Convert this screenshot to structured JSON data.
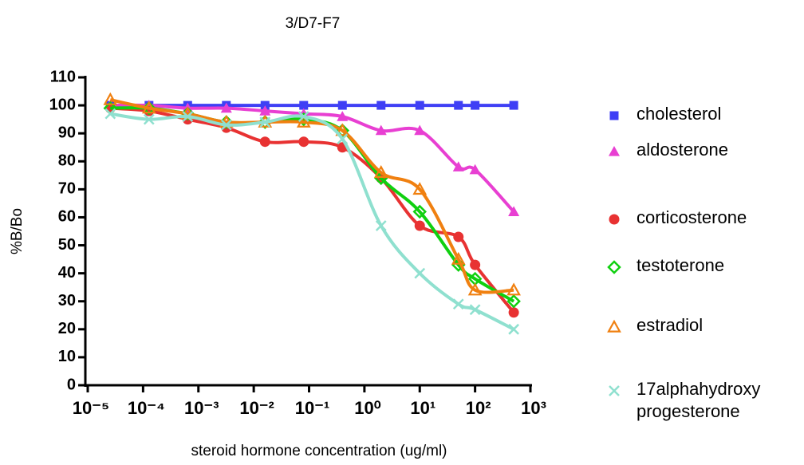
{
  "chart_data": {
    "type": "scatter",
    "title": "3/D7-F7",
    "x_label": "steroid hormone concentration (ug/ml)",
    "y_label": "%B/Bo",
    "log_x": true,
    "xlim": [
      1e-05,
      1000
    ],
    "xticks": [
      {
        "value": 1e-05,
        "label": "10⁻⁵"
      },
      {
        "value": 0.0001,
        "label": "10⁻⁴"
      },
      {
        "value": 0.001,
        "label": "10⁻³"
      },
      {
        "value": 0.01,
        "label": "10⁻²"
      },
      {
        "value": 0.1,
        "label": "10⁻¹"
      },
      {
        "value": 1,
        "label": "10⁰"
      },
      {
        "value": 10,
        "label": "10¹"
      },
      {
        "value": 100,
        "label": "10²"
      },
      {
        "value": 1000,
        "label": "10³"
      }
    ],
    "ylim": [
      0,
      110
    ],
    "yticks": [
      0,
      10,
      20,
      30,
      40,
      50,
      60,
      70,
      80,
      90,
      100,
      110
    ],
    "x": [
      2.56e-05,
      0.000128,
      0.00064,
      0.0032,
      0.016,
      0.08,
      0.4,
      2,
      10,
      50,
      100,
      500
    ],
    "series": [
      {
        "name": "cholesterol",
        "color": "#3f3ff5",
        "marker": "square",
        "values": [
          100,
          100,
          100,
          100,
          100,
          100,
          100,
          100,
          100,
          100,
          100,
          100
        ]
      },
      {
        "name": "aldosterone",
        "color": "#e83fd2",
        "marker": "triangle",
        "values": [
          100,
          100,
          99,
          99,
          98,
          97,
          96,
          91,
          91,
          78,
          77,
          62
        ]
      },
      {
        "name": "corticosterone",
        "color": "#e83232",
        "marker": "circle",
        "values": [
          99,
          98,
          95,
          92,
          87,
          87,
          85,
          74,
          57,
          53,
          43,
          26
        ]
      },
      {
        "name": "testoterone",
        "color": "#10d010",
        "marker": "diamond-open",
        "values": [
          99,
          99,
          97,
          94,
          94,
          95,
          91,
          74,
          62,
          43,
          38,
          30
        ]
      },
      {
        "name": "estradiol",
        "color": "#f08010",
        "marker": "triangle-open",
        "values": [
          102,
          99,
          97,
          94,
          94,
          94,
          91,
          76,
          70,
          45,
          34,
          34
        ]
      },
      {
        "name": "17alphahydroxy progesterone",
        "color": "#8fe0cf",
        "marker": "cross",
        "values": [
          97,
          95,
          96,
          93,
          94,
          96,
          88,
          57,
          40,
          29,
          27,
          20
        ]
      }
    ]
  }
}
